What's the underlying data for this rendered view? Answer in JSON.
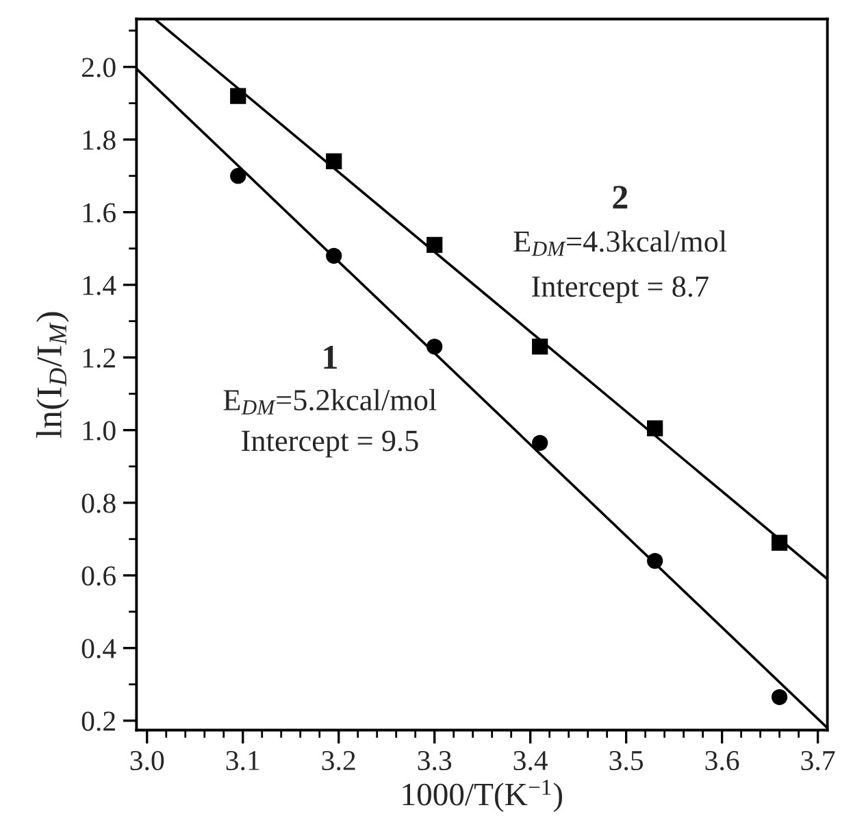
{
  "chart_data": {
    "type": "scatter",
    "xlabel": "1000/T(K$^{−1}$)",
    "ylabel": "ln(I$_{D}$/I$_{M}$)",
    "xlim": [
      2.989,
      3.71
    ],
    "ylim": [
      0.174,
      2.132
    ],
    "xticks": [
      {
        "value": 3.0,
        "label": "3.0"
      },
      3.1,
      3.2,
      3.3,
      3.4,
      3.5,
      3.6,
      3.7
    ],
    "yticks": [
      0.2,
      0.4,
      0.6,
      0.8,
      {
        "value": 1.0,
        "label": "1.0"
      },
      1.2,
      1.4,
      1.6,
      1.8,
      {
        "value": 2.0,
        "label": "2.0"
      }
    ],
    "grid": false,
    "series": [
      {
        "marker": "square",
        "color": "#000000",
        "x": [
          3.095,
          3.195,
          3.3,
          3.41,
          3.53,
          3.66
        ],
        "values": [
          1.92,
          1.74,
          1.51,
          1.23,
          1.005,
          0.69
        ]
      },
      {
        "marker": "circle",
        "color": "#000000",
        "x": [
          3.095,
          3.195,
          3.3,
          3.41,
          3.53,
          3.66
        ],
        "values": [
          1.7,
          1.48,
          1.23,
          0.965,
          0.64,
          0.265
        ]
      },
      {
        "type": "line",
        "marker": "none",
        "line_style": "solid",
        "color": "#000000",
        "x": [
          3.008,
          3.71
        ],
        "values": [
          2.132,
          0.59
        ]
      },
      {
        "type": "line",
        "marker": "none",
        "line_style": "solid",
        "color": "#000000",
        "x": [
          2.989,
          3.71
        ],
        "values": [
          1.995,
          0.18
        ]
      }
    ],
    "annotations": [
      "2",
      "E$_{DM}$=4.3kcal/mol",
      "Intercept = 8.7",
      "1",
      "E$_{DM}$=5.2kcal/mol",
      "Intercept = 9.5"
    ]
  }
}
